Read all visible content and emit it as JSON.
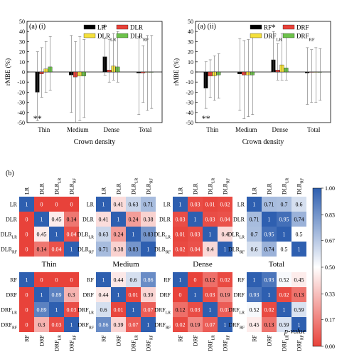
{
  "figure_label_a1": "(a) (i)",
  "figure_label_a2": "(a) (ii)",
  "figure_label_b": "(b)",
  "xlabel": "Crown density",
  "ylabel": "rMBE (%)",
  "colors": {
    "black": "#000000",
    "red": "#e8423a",
    "yellow": "#f4e03b",
    "green": "#6cc24a",
    "low": "#e8423a",
    "mid": "#ffffff",
    "high": "#2e5fb0"
  },
  "chart_data": [
    {
      "type": "bar",
      "panel": "(a) (i)",
      "categories": [
        "Thin",
        "Medium",
        "Dense",
        "Total"
      ],
      "ylim": [
        -50,
        50
      ],
      "yticks": [
        -50,
        -40,
        -30,
        -20,
        -10,
        0,
        10,
        20,
        30,
        40,
        50
      ],
      "xlabel": "Crown density",
      "ylabel": "rMBE (%)",
      "legend": "top-right",
      "series": [
        {
          "name": "LR",
          "color": "#000000",
          "values": [
            -20,
            -3,
            15,
            -1
          ],
          "err_hi": [
            20,
            36,
            33,
            35
          ],
          "err_lo": [
            -48,
            -40,
            -3,
            -42
          ]
        },
        {
          "name": "DLR",
          "color": "#e8423a",
          "values": [
            -2,
            -5,
            2,
            -1
          ],
          "err_hi": [
            24,
            30,
            32,
            26
          ],
          "err_lo": [
            -25,
            -50,
            -10,
            -30
          ]
        },
        {
          "name": "DLR_LR",
          "color": "#f4e03b",
          "values": [
            3,
            -4,
            6,
            0
          ],
          "err_hi": [
            30,
            35,
            38,
            36
          ],
          "err_lo": [
            -20,
            -48,
            -8,
            -38
          ]
        },
        {
          "name": "DLR_RF",
          "color": "#6cc24a",
          "values": [
            5,
            -4,
            5,
            0
          ],
          "err_hi": [
            35,
            32,
            40,
            36
          ],
          "err_lo": [
            -18,
            -45,
            -10,
            -36
          ]
        }
      ],
      "annotations": [
        {
          "text": "**",
          "category": "Thin",
          "side": "below"
        },
        {
          "text": "*",
          "category": "Dense",
          "side": "above"
        }
      ]
    },
    {
      "type": "bar",
      "panel": "(a) (ii)",
      "categories": [
        "Thin",
        "Medium",
        "Dense",
        "Total"
      ],
      "ylim": [
        -50,
        50
      ],
      "yticks": [
        -50,
        -40,
        -30,
        -20,
        -10,
        0,
        10,
        20,
        30,
        40,
        50
      ],
      "xlabel": "Crown density",
      "ylabel": "rMBE (%)",
      "legend": "top-right",
      "series": [
        {
          "name": "RF",
          "color": "#000000",
          "values": [
            -16,
            -2,
            12,
            -1
          ],
          "err_hi": [
            10,
            33,
            40,
            24
          ],
          "err_lo": [
            -36,
            -38,
            0,
            -32
          ]
        },
        {
          "name": "DRF",
          "color": "#e8423a",
          "values": [
            -4,
            -3,
            2,
            0
          ],
          "err_hi": [
            12,
            31,
            28,
            22
          ],
          "err_lo": [
            -25,
            -46,
            -8,
            -30
          ]
        },
        {
          "name": "DRF_LR",
          "color": "#f4e03b",
          "values": [
            -4,
            -3,
            7,
            0
          ],
          "err_hi": [
            16,
            32,
            38,
            24
          ],
          "err_lo": [
            -28,
            -44,
            -8,
            -30
          ]
        },
        {
          "name": "DRF_RF",
          "color": "#6cc24a",
          "values": [
            -3,
            -3,
            4,
            0
          ],
          "err_hi": [
            18,
            34,
            34,
            23
          ],
          "err_lo": [
            -26,
            -42,
            -8,
            -28
          ]
        }
      ],
      "annotations": [
        {
          "text": "**",
          "category": "Thin",
          "side": "below"
        },
        {
          "text": "*",
          "category": "Dense",
          "side": "above"
        }
      ]
    },
    {
      "type": "heatmap",
      "panel": "(b)",
      "row_groups": [
        {
          "labels": [
            "LR",
            "DLR",
            "DLR_LR",
            "DLR_RF"
          ]
        },
        {
          "labels": [
            "RF",
            "DRF",
            "DRF_LR",
            "DRF_RF"
          ]
        }
      ],
      "column_groups": [
        "Thin",
        "Medium",
        "Dense",
        "Total"
      ],
      "colorbar": {
        "label": "p-value",
        "ticks": [
          0.0,
          0.17,
          0.33,
          0.5,
          0.67,
          0.83,
          1.0
        ]
      },
      "matrices": [
        [
          [
            [
              1,
              0,
              0,
              0
            ],
            [
              0,
              1,
              0.45,
              0.14
            ],
            [
              0,
              0.45,
              1,
              0.04
            ],
            [
              0,
              0.14,
              0.04,
              1
            ]
          ],
          [
            [
              1,
              0.41,
              0.63,
              0.71
            ],
            [
              0.41,
              1,
              0.24,
              0.38
            ],
            [
              0.63,
              0.24,
              1,
              0.83
            ],
            [
              0.71,
              0.38,
              0.83,
              1
            ]
          ],
          [
            [
              1,
              0.03,
              0.01,
              0.02
            ],
            [
              0.03,
              1,
              0.03,
              0.04
            ],
            [
              0.01,
              0.03,
              1,
              0.4
            ],
            [
              0.02,
              0.04,
              0.4,
              1
            ]
          ],
          [
            [
              1,
              0.71,
              0.7,
              0.6
            ],
            [
              0.71,
              1,
              0.95,
              0.74
            ],
            [
              0.7,
              0.95,
              1,
              0.5
            ],
            [
              0.6,
              0.74,
              0.5,
              1
            ]
          ]
        ],
        [
          [
            [
              1,
              0,
              0,
              0
            ],
            [
              0,
              1,
              0.89,
              0.3
            ],
            [
              0,
              0.89,
              1,
              0.03
            ],
            [
              0,
              0.3,
              0.03,
              1
            ]
          ],
          [
            [
              1,
              0.44,
              0.6,
              0.86
            ],
            [
              0.44,
              1,
              0.01,
              0.39
            ],
            [
              0.6,
              0.01,
              1,
              0.07
            ],
            [
              0.86,
              0.39,
              0.07,
              1
            ]
          ],
          [
            [
              1,
              0,
              0.12,
              0.02
            ],
            [
              0,
              1,
              0.03,
              0.19
            ],
            [
              0.12,
              0.03,
              1,
              0.07
            ],
            [
              0.02,
              0.19,
              0.07,
              1
            ]
          ],
          [
            [
              1,
              0.93,
              0.52,
              0.45
            ],
            [
              0.93,
              1,
              0.02,
              0.13
            ],
            [
              0.52,
              0.02,
              1,
              0.59
            ],
            [
              0.45,
              0.13,
              0.59,
              1
            ]
          ]
        ]
      ],
      "cell_labels": [
        [
          [
            [
              "1",
              "0",
              "0",
              "0"
            ],
            [
              "0",
              "1",
              "0.45",
              "0.14"
            ],
            [
              "0",
              "0.45",
              "1",
              "0.04"
            ],
            [
              "0",
              "0.14",
              "0.04",
              "1"
            ]
          ],
          [
            [
              "1",
              "0.41",
              "0.63",
              "0.71"
            ],
            [
              "0.41",
              "1",
              "0.24",
              "0.38"
            ],
            [
              "0.63",
              "0.24",
              "1",
              "0.83"
            ],
            [
              "0.71",
              "0.38",
              "0.83",
              "1"
            ]
          ],
          [
            [
              "1",
              "0.03",
              "0.01",
              "0.02"
            ],
            [
              "0.03",
              "1",
              "0.03",
              "0.04"
            ],
            [
              "0.01",
              "0.03",
              "1",
              "0.4"
            ],
            [
              "0.02",
              "0.04",
              "0.4",
              "1"
            ]
          ],
          [
            [
              "1",
              "0.71",
              "0.7",
              "0.6"
            ],
            [
              "0.71",
              "1",
              "0.95",
              "0.74"
            ],
            [
              "0.7",
              "0.95",
              "1",
              "0.5"
            ],
            [
              "0.6",
              "0.74",
              "0.5",
              "1"
            ]
          ]
        ],
        [
          [
            [
              "1",
              "0",
              "0",
              "0"
            ],
            [
              "0",
              "1",
              "0.89",
              "0.3"
            ],
            [
              "0",
              "0.89",
              "1",
              "0.03"
            ],
            [
              "0",
              "0.3",
              "0.03",
              "1"
            ]
          ],
          [
            [
              "1",
              "0.44",
              "0.6",
              "0.86"
            ],
            [
              "0.44",
              "1",
              "0.01",
              "0.39"
            ],
            [
              "0.6",
              "0.01",
              "1",
              "0.07"
            ],
            [
              "0.86",
              "0.39",
              "0.07",
              "1"
            ]
          ],
          [
            [
              "1",
              "0",
              "0.12",
              "0.02"
            ],
            [
              "0",
              "1",
              "0.03",
              "0.19"
            ],
            [
              "0.12",
              "0.03",
              "1",
              "0.07"
            ],
            [
              "0.02",
              "0.19",
              "0.07",
              "1"
            ]
          ],
          [
            [
              "1",
              "0.93",
              "0.52",
              "0.45"
            ],
            [
              "0.93",
              "1",
              "0.02",
              "0.13"
            ],
            [
              "0.52",
              "0.02",
              "1",
              "0.59"
            ],
            [
              "0.45",
              "0.13",
              "0.59",
              "1"
            ]
          ]
        ]
      ]
    }
  ]
}
